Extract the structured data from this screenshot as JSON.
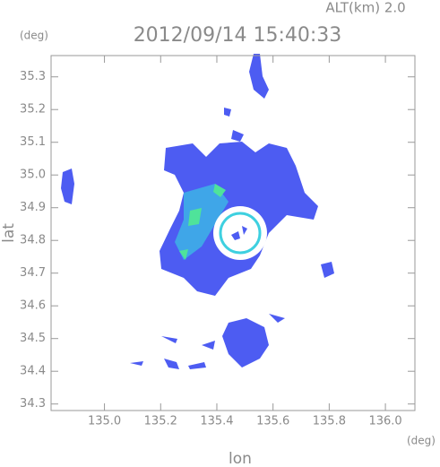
{
  "chart_data": {
    "type": "image",
    "title": "2012/09/14 15:40:33",
    "subtitle": "ALT(km) 2.0",
    "y_unit": "(deg)",
    "x_unit": "(deg)",
    "x_label": "lon",
    "y_label": "lat",
    "xlim": [
      134.81,
      136.105
    ],
    "ylim": [
      34.28,
      35.365
    ],
    "xticks": [
      {
        "value": 135,
        "label": "135.0"
      },
      135.2,
      135.4,
      135.6,
      135.8,
      {
        "value": 136,
        "label": "136.0"
      }
    ],
    "yticks": [
      34.3,
      34.4,
      34.5,
      34.6,
      34.7,
      34.8,
      34.9,
      {
        "value": 35,
        "label": "35.0"
      },
      35.1,
      35.2,
      35.3
    ]
  }
}
